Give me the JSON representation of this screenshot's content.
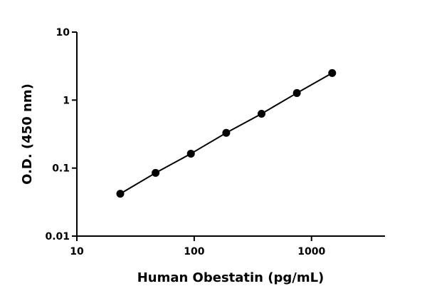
{
  "chart_data": {
    "type": "line",
    "x_label": "Human Obestatin (pg/mL)",
    "y_label": "O.D. (450 nm)",
    "x": [
      23.44,
      46.88,
      93.75,
      187.5,
      375,
      750,
      1500
    ],
    "series": [
      {
        "color": "#000000",
        "values": [
          0.042,
          0.085,
          0.163,
          0.33,
          0.63,
          1.27,
          2.5
        ]
      }
    ],
    "xlim": [
      10,
      4000
    ],
    "ylim": [
      0.01,
      10
    ],
    "xticks": [
      10,
      100,
      1000
    ],
    "yticks": [
      0.01,
      0.1,
      1,
      10
    ],
    "xscale": "log",
    "yscale": "log",
    "markers": true
  }
}
